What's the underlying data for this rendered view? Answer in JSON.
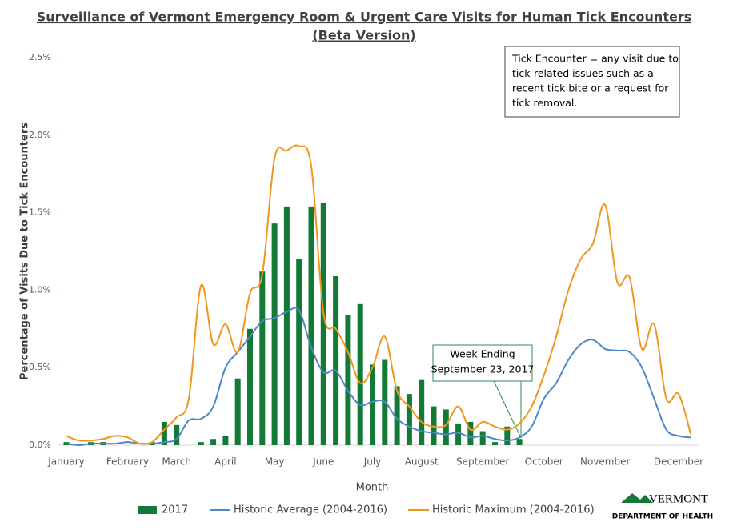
{
  "chart_data": {
    "type": "bar",
    "title": "Surveillance of Vermont Emergency Room & Urgent Care Visits for Human Tick Encounters",
    "subtitle": "(Beta Version)",
    "x_label": "Month",
    "y_label": "Percentage of Visits Due to Tick Encounters",
    "categories": [
      "January",
      null,
      null,
      null,
      null,
      "February",
      null,
      null,
      null,
      "March",
      null,
      null,
      null,
      "April",
      null,
      null,
      null,
      "May",
      null,
      null,
      null,
      "June",
      null,
      null,
      null,
      "July",
      null,
      null,
      null,
      "August",
      null,
      null,
      null,
      null,
      "September",
      null,
      null,
      null,
      null,
      "October",
      null,
      null,
      null,
      null,
      "November",
      null,
      null,
      null,
      null,
      null,
      "December",
      null
    ],
    "ylim": [
      0,
      2.5
    ],
    "yticks": [
      {
        "value": 0,
        "label": "0.0%"
      },
      {
        "value": 0.5,
        "label": "0.5%"
      },
      {
        "value": 1,
        "label": "1.0%"
      },
      {
        "value": 1.5,
        "label": "1.5%"
      },
      {
        "value": 2,
        "label": "2.0%"
      },
      {
        "value": 2.5,
        "label": "2.5%"
      }
    ],
    "series": [
      {
        "name": "2017",
        "type": "bar",
        "color": "#127a36",
        "values": [
          0.02,
          0,
          0.02,
          0.02,
          0,
          0,
          0,
          0.02,
          0.15,
          0.13,
          0,
          0.02,
          0.04,
          0.06,
          0.43,
          0.75,
          1.12,
          1.43,
          1.54,
          1.2,
          1.54,
          1.56,
          1.09,
          0.84,
          0.91,
          0.52,
          0.55,
          0.38,
          0.33,
          0.42,
          0.25,
          0.23,
          0.14,
          0.15,
          0.09,
          0.02,
          0.12,
          0.04,
          null,
          null,
          null,
          null,
          null,
          null,
          null,
          null,
          null,
          null,
          null,
          null,
          null,
          null
        ]
      },
      {
        "name": "Historic Average (2004-2016)",
        "type": "line",
        "color": "#4f86c6",
        "values": [
          0.01,
          0,
          0.01,
          0.01,
          0.01,
          0.02,
          0.01,
          0.01,
          0.02,
          0.04,
          0.16,
          0.17,
          0.25,
          0.5,
          0.6,
          0.7,
          0.8,
          0.82,
          0.86,
          0.87,
          0.63,
          0.47,
          0.48,
          0.35,
          0.26,
          0.28,
          0.28,
          0.17,
          0.12,
          0.09,
          0.08,
          0.07,
          0.08,
          0.05,
          0.06,
          0.04,
          0.03,
          0.05,
          0.12,
          0.3,
          0.4,
          0.55,
          0.65,
          0.68,
          0.62,
          0.61,
          0.6,
          0.5,
          0.3,
          0.1,
          0.06,
          0.05
        ]
      },
      {
        "name": "Historic Maximum (2004-2016)",
        "type": "line",
        "color": "#f0961e",
        "values": [
          0.06,
          0.03,
          0.03,
          0.04,
          0.06,
          0.05,
          0.01,
          0.02,
          0.1,
          0.18,
          0.3,
          1.03,
          0.65,
          0.78,
          0.6,
          0.98,
          1.1,
          1.85,
          1.9,
          1.93,
          1.8,
          0.85,
          0.75,
          0.6,
          0.4,
          0.5,
          0.7,
          0.35,
          0.25,
          0.15,
          0.12,
          0.13,
          0.25,
          0.1,
          0.15,
          0.12,
          0.1,
          0.14,
          0.25,
          0.45,
          0.7,
          1.0,
          1.2,
          1.3,
          1.55,
          1.05,
          1.08,
          0.62,
          0.78,
          0.3,
          0.33,
          0.07
        ]
      }
    ],
    "legend": "bottom",
    "grid": false,
    "annotations": [
      {
        "name": "note",
        "lines": [
          "Tick Encounter = any visit due to",
          "tick-related issues such as a",
          "recent tick bite or a request for",
          "tick removal."
        ]
      },
      {
        "name": "callout",
        "lines": [
          "Week Ending",
          "September 23, 2017"
        ]
      }
    ]
  },
  "logo": {
    "name": "VERMONT",
    "department": "DEPARTMENT OF HEALTH"
  }
}
